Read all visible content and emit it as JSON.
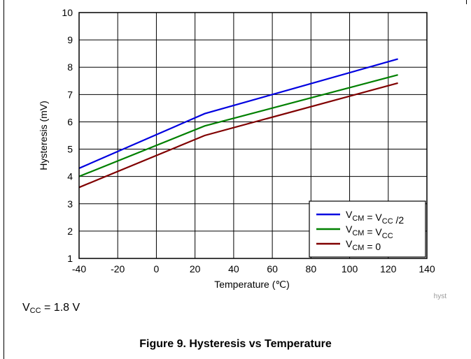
{
  "chart_data": {
    "type": "line",
    "xlabel": "Temperature (℃)",
    "ylabel": "Hysteresis (mV)",
    "xlim": [
      -40,
      140
    ],
    "ylim": [
      1,
      10
    ],
    "xticks": [
      -40,
      -20,
      0,
      20,
      40,
      60,
      80,
      100,
      120,
      140
    ],
    "yticks": [
      1,
      2,
      3,
      4,
      5,
      6,
      7,
      8,
      9,
      10
    ],
    "grid": true,
    "legend_position": "bottom-right",
    "series": [
      {
        "name_main": "V",
        "name_sub": "CM",
        "name_mid": " = V",
        "name_sub2": "CC",
        "name_tail": " /2",
        "color": "#0000e0",
        "x": [
          -40,
          25,
          125
        ],
        "y": [
          4.3,
          6.3,
          8.3
        ]
      },
      {
        "name_main": "V",
        "name_sub": "CM",
        "name_mid": " = V",
        "name_sub2": "CC",
        "name_tail": "",
        "color": "#008000",
        "x": [
          -40,
          25,
          125
        ],
        "y": [
          4.0,
          5.85,
          7.72
        ]
      },
      {
        "name_main": "V",
        "name_sub": "CM",
        "name_mid": " = 0",
        "name_sub2": "",
        "name_tail": "",
        "color": "#800000",
        "x": [
          -40,
          25,
          125
        ],
        "y": [
          3.6,
          5.5,
          7.42
        ]
      }
    ]
  },
  "watermark": "hyst",
  "condition": {
    "main": "V",
    "sub": "CC",
    "rest": " = 1.8 V"
  },
  "caption": "Figure 9. Hysteresis vs Temperature"
}
